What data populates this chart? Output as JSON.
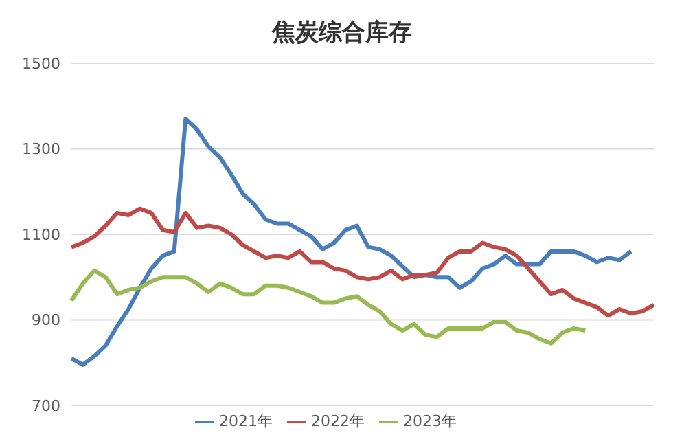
{
  "chart_data": {
    "type": "line",
    "title": "焦炭综合库存",
    "categories": [
      null,
      null,
      null,
      null,
      null,
      null,
      null,
      null,
      null,
      null,
      null,
      null,
      null,
      null,
      null,
      null,
      null,
      null,
      null,
      null,
      null,
      null,
      null,
      null,
      null,
      null,
      null,
      null,
      null,
      null,
      null,
      null,
      null,
      null,
      null,
      null,
      null,
      null,
      null,
      null,
      null,
      null,
      null,
      null,
      null,
      null,
      null,
      null,
      null,
      null,
      null,
      null
    ],
    "series": [
      {
        "name": "2021年",
        "color": "#4a7ebb",
        "values": [
          810,
          795,
          815,
          840,
          885,
          925,
          975,
          1020,
          1050,
          1060,
          1370,
          1345,
          1305,
          1280,
          1240,
          1195,
          1170,
          1135,
          1125,
          1125,
          1110,
          1095,
          1065,
          1080,
          1110,
          1120,
          1070,
          1065,
          1050,
          1025,
          1000,
          1005,
          1000,
          1000,
          975,
          990,
          1020,
          1030,
          1050,
          1030,
          1030,
          1030,
          1060,
          1060,
          1060,
          1050,
          1035,
          1045,
          1040,
          1060,
          null,
          null
        ]
      },
      {
        "name": "2022年",
        "color": "#be4b48",
        "values": [
          1070,
          1080,
          1095,
          1120,
          1150,
          1145,
          1160,
          1150,
          1110,
          1105,
          1150,
          1115,
          1120,
          1115,
          1100,
          1075,
          1060,
          1045,
          1050,
          1045,
          1060,
          1035,
          1035,
          1020,
          1015,
          1000,
          995,
          1000,
          1015,
          995,
          1005,
          1005,
          1010,
          1045,
          1060,
          1060,
          1080,
          1070,
          1065,
          1050,
          1020,
          990,
          960,
          970,
          950,
          940,
          930,
          910,
          925,
          915,
          920,
          935
        ]
      },
      {
        "name": "2023年",
        "color": "#98b954",
        "values": [
          945,
          985,
          1015,
          1000,
          960,
          970,
          975,
          990,
          1000,
          1000,
          1000,
          985,
          965,
          985,
          975,
          960,
          960,
          980,
          980,
          975,
          965,
          955,
          940,
          940,
          950,
          955,
          935,
          920,
          890,
          875,
          890,
          865,
          860,
          880,
          880,
          880,
          880,
          895,
          895,
          875,
          870,
          855,
          845,
          870,
          880,
          875,
          null,
          null,
          null,
          null,
          null,
          null
        ]
      }
    ],
    "ylim": [
      700,
      1500
    ],
    "yticks": [
      700,
      900,
      1100,
      1300,
      1500
    ],
    "grid": "y",
    "legend": "bottom",
    "marker": "none",
    "line_style": "solid"
  }
}
